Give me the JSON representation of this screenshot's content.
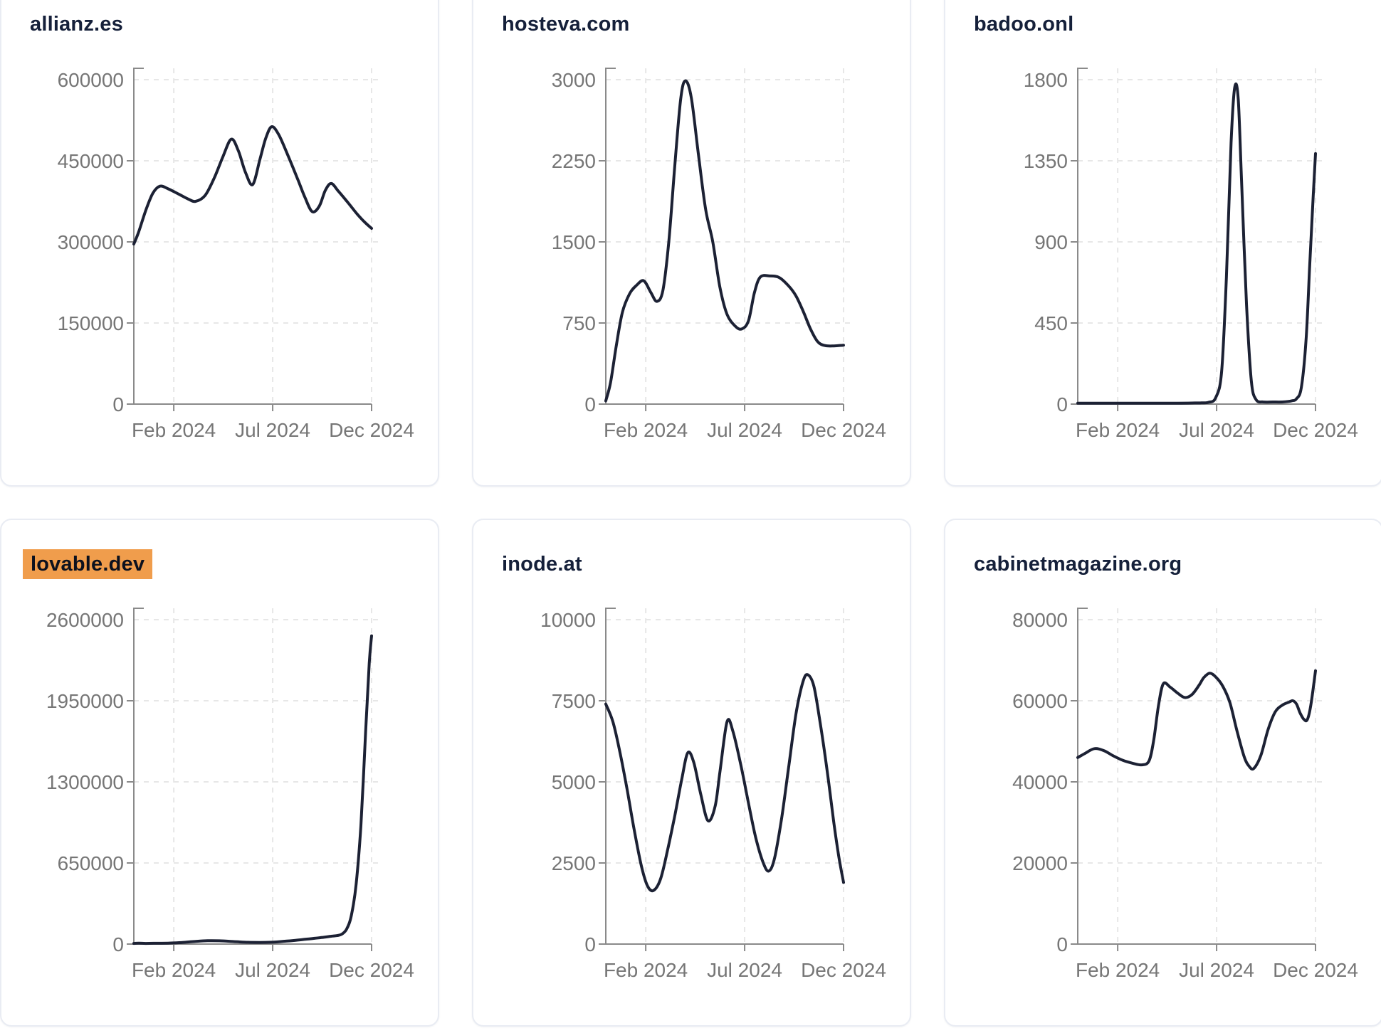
{
  "style": {
    "page_background": "#ffffff",
    "card_background": "#ffffff",
    "card_border": "#e9ecf3",
    "title_color": "#15203a",
    "highlight_background": "#f09d4c",
    "highlight_text": "#0c111e",
    "line_color": "#1c2134",
    "axis_color": "#8a8a8a",
    "tick_label_color": "#767676",
    "grid_color": "#e7e7e7"
  },
  "chart_data": [
    {
      "type": "line",
      "title": "allianz.es",
      "title_highlighted": false,
      "legend": "none",
      "grid": true,
      "ylim": [
        0,
        600000
      ],
      "y_ticks": [
        {
          "v": 600000,
          "label": "600000"
        },
        {
          "v": 450000,
          "label": "450000"
        },
        {
          "v": 300000,
          "label": "300000"
        },
        {
          "v": 150000,
          "label": "150000"
        },
        {
          "v": 0,
          "label": "0"
        }
      ],
      "x_ticks": [
        {
          "f": 0.168,
          "label": "Feb 2024"
        },
        {
          "f": 0.584,
          "label": "Jul 2024"
        },
        {
          "f": 1.0,
          "label": "Dec 2024"
        }
      ],
      "points": [
        [
          0,
          296000
        ],
        [
          0.02,
          318000
        ],
        [
          0.05,
          358000
        ],
        [
          0.08,
          390000
        ],
        [
          0.11,
          403000
        ],
        [
          0.145,
          398000
        ],
        [
          0.19,
          388000
        ],
        [
          0.23,
          379000
        ],
        [
          0.26,
          375000
        ],
        [
          0.3,
          386000
        ],
        [
          0.34,
          420000
        ],
        [
          0.375,
          458000
        ],
        [
          0.41,
          490000
        ],
        [
          0.44,
          468000
        ],
        [
          0.47,
          428000
        ],
        [
          0.5,
          406000
        ],
        [
          0.53,
          452000
        ],
        [
          0.555,
          492000
        ],
        [
          0.58,
          513000
        ],
        [
          0.61,
          498000
        ],
        [
          0.65,
          458000
        ],
        [
          0.69,
          415000
        ],
        [
          0.72,
          382000
        ],
        [
          0.75,
          356000
        ],
        [
          0.78,
          366000
        ],
        [
          0.805,
          395000
        ],
        [
          0.83,
          408000
        ],
        [
          0.86,
          394000
        ],
        [
          0.9,
          373000
        ],
        [
          0.94,
          351000
        ],
        [
          0.97,
          337000
        ],
        [
          1,
          325000
        ]
      ]
    },
    {
      "type": "line",
      "title": "hosteva.com",
      "title_highlighted": false,
      "legend": "none",
      "grid": true,
      "ylim": [
        0,
        3000
      ],
      "y_ticks": [
        {
          "v": 3000,
          "label": "3000"
        },
        {
          "v": 2250,
          "label": "2250"
        },
        {
          "v": 1500,
          "label": "1500"
        },
        {
          "v": 750,
          "label": "750"
        },
        {
          "v": 0,
          "label": "0"
        }
      ],
      "x_ticks": [
        {
          "f": 0.168,
          "label": "Feb 2024"
        },
        {
          "f": 0.584,
          "label": "Jul 2024"
        },
        {
          "f": 1.0,
          "label": "Dec 2024"
        }
      ],
      "points": [
        [
          0,
          30
        ],
        [
          0.02,
          200
        ],
        [
          0.045,
          550
        ],
        [
          0.07,
          850
        ],
        [
          0.1,
          1020
        ],
        [
          0.13,
          1100
        ],
        [
          0.16,
          1140
        ],
        [
          0.19,
          1030
        ],
        [
          0.215,
          950
        ],
        [
          0.24,
          1050
        ],
        [
          0.265,
          1500
        ],
        [
          0.29,
          2200
        ],
        [
          0.315,
          2820
        ],
        [
          0.335,
          2990
        ],
        [
          0.36,
          2830
        ],
        [
          0.39,
          2300
        ],
        [
          0.42,
          1800
        ],
        [
          0.45,
          1500
        ],
        [
          0.48,
          1080
        ],
        [
          0.51,
          830
        ],
        [
          0.545,
          720
        ],
        [
          0.572,
          695
        ],
        [
          0.6,
          770
        ],
        [
          0.625,
          1030
        ],
        [
          0.65,
          1175
        ],
        [
          0.69,
          1185
        ],
        [
          0.73,
          1170
        ],
        [
          0.77,
          1090
        ],
        [
          0.8,
          1000
        ],
        [
          0.83,
          860
        ],
        [
          0.86,
          700
        ],
        [
          0.89,
          580
        ],
        [
          0.92,
          542
        ],
        [
          0.96,
          538
        ],
        [
          1,
          545
        ]
      ]
    },
    {
      "type": "line",
      "title": "badoo.onl",
      "title_highlighted": false,
      "legend": "none",
      "grid": true,
      "ylim": [
        0,
        1800
      ],
      "y_ticks": [
        {
          "v": 1800,
          "label": "1800"
        },
        {
          "v": 1350,
          "label": "1350"
        },
        {
          "v": 900,
          "label": "900"
        },
        {
          "v": 450,
          "label": "450"
        },
        {
          "v": 0,
          "label": "0"
        }
      ],
      "x_ticks": [
        {
          "f": 0.168,
          "label": "Feb 2024"
        },
        {
          "f": 0.584,
          "label": "Jul 2024"
        },
        {
          "f": 1.0,
          "label": "Dec 2024"
        }
      ],
      "points": [
        [
          0,
          5
        ],
        [
          0.06,
          5
        ],
        [
          0.12,
          5
        ],
        [
          0.18,
          5
        ],
        [
          0.24,
          5
        ],
        [
          0.3,
          5
        ],
        [
          0.36,
          5
        ],
        [
          0.42,
          5
        ],
        [
          0.48,
          6
        ],
        [
          0.52,
          7
        ],
        [
          0.55,
          10
        ],
        [
          0.58,
          35
        ],
        [
          0.605,
          180
        ],
        [
          0.625,
          700
        ],
        [
          0.645,
          1450
        ],
        [
          0.66,
          1755
        ],
        [
          0.675,
          1690
        ],
        [
          0.69,
          1200
        ],
        [
          0.71,
          550
        ],
        [
          0.73,
          130
        ],
        [
          0.75,
          25
        ],
        [
          0.78,
          12
        ],
        [
          0.82,
          12
        ],
        [
          0.86,
          12
        ],
        [
          0.9,
          18
        ],
        [
          0.92,
          30
        ],
        [
          0.94,
          90
        ],
        [
          0.96,
          350
        ],
        [
          0.975,
          750
        ],
        [
          0.99,
          1150
        ],
        [
          1,
          1390
        ]
      ]
    },
    {
      "type": "line",
      "title": "lovable.dev",
      "title_highlighted": true,
      "legend": "none",
      "grid": true,
      "ylim": [
        0,
        2600000
      ],
      "y_ticks": [
        {
          "v": 2600000,
          "label": "2600000"
        },
        {
          "v": 1950000,
          "label": "1950000"
        },
        {
          "v": 1300000,
          "label": "1300000"
        },
        {
          "v": 650000,
          "label": "650000"
        },
        {
          "v": 0,
          "label": "0"
        }
      ],
      "x_ticks": [
        {
          "f": 0.168,
          "label": "Feb 2024"
        },
        {
          "f": 0.584,
          "label": "Jul 2024"
        },
        {
          "f": 1.0,
          "label": "Dec 2024"
        }
      ],
      "points": [
        [
          0,
          5000
        ],
        [
          0.05,
          5000
        ],
        [
          0.1,
          6000
        ],
        [
          0.15,
          8000
        ],
        [
          0.2,
          12000
        ],
        [
          0.25,
          20000
        ],
        [
          0.31,
          27000
        ],
        [
          0.36,
          26000
        ],
        [
          0.42,
          20000
        ],
        [
          0.48,
          14000
        ],
        [
          0.53,
          13000
        ],
        [
          0.58,
          15000
        ],
        [
          0.63,
          22000
        ],
        [
          0.68,
          30000
        ],
        [
          0.72,
          38000
        ],
        [
          0.76,
          46000
        ],
        [
          0.8,
          55000
        ],
        [
          0.83,
          63000
        ],
        [
          0.855,
          68000
        ],
        [
          0.875,
          80000
        ],
        [
          0.895,
          120000
        ],
        [
          0.915,
          230000
        ],
        [
          0.935,
          480000
        ],
        [
          0.955,
          950000
        ],
        [
          0.975,
          1700000
        ],
        [
          0.99,
          2250000
        ],
        [
          1,
          2470000
        ]
      ]
    },
    {
      "type": "line",
      "title": "inode.at",
      "title_highlighted": false,
      "legend": "none",
      "grid": true,
      "ylim": [
        0,
        10000
      ],
      "y_ticks": [
        {
          "v": 10000,
          "label": "10000"
        },
        {
          "v": 7500,
          "label": "7500"
        },
        {
          "v": 5000,
          "label": "5000"
        },
        {
          "v": 2500,
          "label": "2500"
        },
        {
          "v": 0,
          "label": "0"
        }
      ],
      "x_ticks": [
        {
          "f": 0.168,
          "label": "Feb 2024"
        },
        {
          "f": 0.584,
          "label": "Jul 2024"
        },
        {
          "f": 1.0,
          "label": "Dec 2024"
        }
      ],
      "points": [
        [
          0,
          7400
        ],
        [
          0.03,
          6850
        ],
        [
          0.06,
          5900
        ],
        [
          0.09,
          4750
        ],
        [
          0.12,
          3500
        ],
        [
          0.15,
          2400
        ],
        [
          0.175,
          1800
        ],
        [
          0.2,
          1650
        ],
        [
          0.23,
          2000
        ],
        [
          0.26,
          2900
        ],
        [
          0.29,
          3950
        ],
        [
          0.32,
          5100
        ],
        [
          0.345,
          5900
        ],
        [
          0.37,
          5600
        ],
        [
          0.4,
          4600
        ],
        [
          0.43,
          3800
        ],
        [
          0.46,
          4250
        ],
        [
          0.48,
          5300
        ],
        [
          0.51,
          6850
        ],
        [
          0.535,
          6550
        ],
        [
          0.57,
          5450
        ],
        [
          0.6,
          4350
        ],
        [
          0.63,
          3300
        ],
        [
          0.66,
          2550
        ],
        [
          0.685,
          2250
        ],
        [
          0.71,
          2650
        ],
        [
          0.74,
          3900
        ],
        [
          0.77,
          5500
        ],
        [
          0.8,
          7100
        ],
        [
          0.83,
          8100
        ],
        [
          0.85,
          8300
        ],
        [
          0.875,
          7950
        ],
        [
          0.9,
          6900
        ],
        [
          0.93,
          5400
        ],
        [
          0.96,
          3700
        ],
        [
          0.98,
          2700
        ],
        [
          1,
          1900
        ]
      ]
    },
    {
      "type": "line",
      "title": "cabinetmagazine.org",
      "title_highlighted": false,
      "legend": "none",
      "grid": true,
      "ylim": [
        0,
        80000
      ],
      "y_ticks": [
        {
          "v": 80000,
          "label": "80000"
        },
        {
          "v": 60000,
          "label": "60000"
        },
        {
          "v": 40000,
          "label": "40000"
        },
        {
          "v": 20000,
          "label": "20000"
        },
        {
          "v": 0,
          "label": "0"
        }
      ],
      "x_ticks": [
        {
          "f": 0.168,
          "label": "Feb 2024"
        },
        {
          "f": 0.584,
          "label": "Jul 2024"
        },
        {
          "f": 1.0,
          "label": "Dec 2024"
        }
      ],
      "points": [
        [
          0,
          46000
        ],
        [
          0.03,
          47000
        ],
        [
          0.07,
          48200
        ],
        [
          0.11,
          47700
        ],
        [
          0.15,
          46400
        ],
        [
          0.19,
          45300
        ],
        [
          0.23,
          44600
        ],
        [
          0.27,
          44200
        ],
        [
          0.3,
          45200
        ],
        [
          0.32,
          50500
        ],
        [
          0.34,
          59000
        ],
        [
          0.36,
          64200
        ],
        [
          0.39,
          63300
        ],
        [
          0.42,
          61900
        ],
        [
          0.45,
          60800
        ],
        [
          0.48,
          61500
        ],
        [
          0.51,
          63800
        ],
        [
          0.53,
          65700
        ],
        [
          0.555,
          66800
        ],
        [
          0.58,
          65900
        ],
        [
          0.61,
          63600
        ],
        [
          0.64,
          59500
        ],
        [
          0.67,
          52500
        ],
        [
          0.7,
          46200
        ],
        [
          0.72,
          43900
        ],
        [
          0.74,
          43300
        ],
        [
          0.77,
          46500
        ],
        [
          0.8,
          52800
        ],
        [
          0.83,
          57200
        ],
        [
          0.86,
          58900
        ],
        [
          0.89,
          59700
        ],
        [
          0.905,
          60000
        ],
        [
          0.92,
          59200
        ],
        [
          0.935,
          57000
        ],
        [
          0.95,
          55500
        ],
        [
          0.965,
          55300
        ],
        [
          0.98,
          58800
        ],
        [
          1,
          67400
        ]
      ]
    }
  ]
}
